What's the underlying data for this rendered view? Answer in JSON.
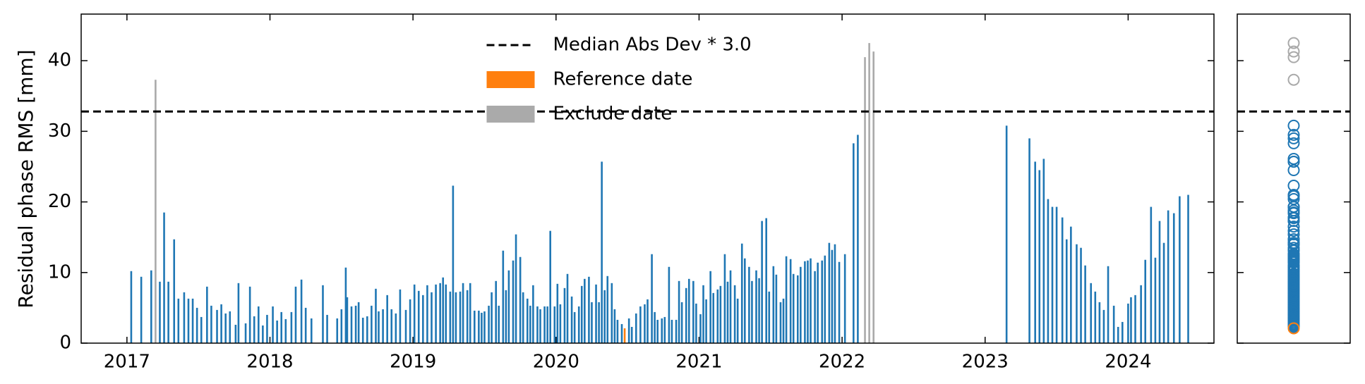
{
  "chart_data": {
    "type": "bar",
    "y_label": "Residual phase RMS [mm]",
    "xlim": [
      2016.68,
      2024.6
    ],
    "xticks": [
      2017,
      2018,
      2019,
      2020,
      2021,
      2022,
      2023,
      2024
    ],
    "ylim": [
      0,
      46.6
    ],
    "yticks": [
      0,
      10,
      20,
      30,
      40
    ],
    "legend": "upper center",
    "distribution_panel": true,
    "threshold": {
      "label": "Median Abs Dev * 3.0",
      "value": 32.8,
      "color": "#000000"
    },
    "series": [
      {
        "color": "#1f77b4",
        "x": [
          2017.03,
          2017.1,
          2017.17,
          2017.23,
          2017.26,
          2017.29,
          2017.33,
          2017.36,
          2017.4,
          2017.43,
          2017.46,
          2017.49,
          2017.52,
          2017.56,
          2017.59,
          2017.63,
          2017.66,
          2017.69,
          2017.72,
          2017.76,
          2017.78,
          2017.83,
          2017.86,
          2017.89,
          2017.92,
          2017.95,
          2017.98,
          2018.02,
          2018.05,
          2018.08,
          2018.11,
          2018.15,
          2018.18,
          2018.22,
          2018.25,
          2018.29,
          2018.37,
          2018.4,
          2018.47,
          2018.5,
          2018.53,
          2018.54,
          2018.57,
          2018.6,
          2018.62,
          2018.65,
          2018.68,
          2018.71,
          2018.74,
          2018.76,
          2018.79,
          2018.82,
          2018.85,
          2018.88,
          2018.91,
          2018.95,
          2018.98,
          2019.01,
          2019.04,
          2019.07,
          2019.1,
          2019.13,
          2019.16,
          2019.19,
          2019.21,
          2019.23,
          2019.26,
          2019.28,
          2019.3,
          2019.33,
          2019.35,
          2019.38,
          2019.4,
          2019.43,
          2019.46,
          2019.48,
          2019.5,
          2019.53,
          2019.55,
          2019.58,
          2019.6,
          2019.63,
          2019.65,
          2019.67,
          2019.7,
          2019.72,
          2019.75,
          2019.77,
          2019.8,
          2019.82,
          2019.84,
          2019.87,
          2019.89,
          2019.92,
          2019.94,
          2019.96,
          2019.99,
          2020.01,
          2020.03,
          2020.06,
          2020.08,
          2020.11,
          2020.13,
          2020.16,
          2020.18,
          2020.2,
          2020.23,
          2020.25,
          2020.28,
          2020.3,
          2020.32,
          2020.34,
          2020.36,
          2020.39,
          2020.41,
          2020.43,
          2020.46,
          2020.51,
          2020.53,
          2020.56,
          2020.59,
          2020.62,
          2020.64,
          2020.67,
          2020.69,
          2020.71,
          2020.74,
          2020.76,
          2020.79,
          2020.81,
          2020.84,
          2020.86,
          2020.88,
          2020.91,
          2020.93,
          2020.96,
          2020.98,
          2021.01,
          2021.03,
          2021.05,
          2021.08,
          2021.1,
          2021.13,
          2021.15,
          2021.18,
          2021.2,
          2021.22,
          2021.25,
          2021.27,
          2021.3,
          2021.32,
          2021.35,
          2021.37,
          2021.4,
          2021.42,
          2021.44,
          2021.47,
          2021.49,
          2021.52,
          2021.54,
          2021.57,
          2021.59,
          2021.61,
          2021.64,
          2021.66,
          2021.69,
          2021.71,
          2021.74,
          2021.76,
          2021.78,
          2021.81,
          2021.83,
          2021.86,
          2021.88,
          2021.91,
          2021.93,
          2021.95,
          2021.98,
          2022.02,
          2022.08,
          2022.11,
          2023.15,
          2023.31,
          2023.35,
          2023.38,
          2023.41,
          2023.44,
          2023.47,
          2023.5,
          2023.54,
          2023.57,
          2023.6,
          2023.64,
          2023.67,
          2023.7,
          2023.74,
          2023.77,
          2023.8,
          2023.83,
          2023.86,
          2023.9,
          2023.93,
          2023.96,
          2024.0,
          2024.02,
          2024.05,
          2024.09,
          2024.12,
          2024.16,
          2024.19,
          2024.22,
          2024.25,
          2024.28,
          2024.32,
          2024.36,
          2024.42
        ],
        "values": [
          10.2,
          9.4,
          10.3,
          8.7,
          18.5,
          8.7,
          14.7,
          6.3,
          7.2,
          6.3,
          6.3,
          5.0,
          3.7,
          8.0,
          5.3,
          4.7,
          5.5,
          4.2,
          4.5,
          2.6,
          8.5,
          2.8,
          8.0,
          3.8,
          5.2,
          2.5,
          4.0,
          5.2,
          3.2,
          4.4,
          3.4,
          4.4,
          8.0,
          9.0,
          5.0,
          3.5,
          8.2,
          4.0,
          3.5,
          4.8,
          10.7,
          6.5,
          5.2,
          5.3,
          5.8,
          3.6,
          3.8,
          5.3,
          7.7,
          4.5,
          4.8,
          6.8,
          4.8,
          4.2,
          7.6,
          4.7,
          6.2,
          8.3,
          7.4,
          6.8,
          8.2,
          7.2,
          8.3,
          8.5,
          9.3,
          8.3,
          7.3,
          22.3,
          7.2,
          7.3,
          8.5,
          7.5,
          8.5,
          4.6,
          4.6,
          4.3,
          4.5,
          5.3,
          7.2,
          8.8,
          5.3,
          13.1,
          7.5,
          10.3,
          11.7,
          15.4,
          12.2,
          7.2,
          6.3,
          5.3,
          8.2,
          5.2,
          4.8,
          5.2,
          5.2,
          15.9,
          5.2,
          8.4,
          5.5,
          7.8,
          9.8,
          6.6,
          4.4,
          5.2,
          8.1,
          9.1,
          9.4,
          5.8,
          8.3,
          5.8,
          25.7,
          7.5,
          9.5,
          8.5,
          4.8,
          3.3,
          2.7,
          3.5,
          2.3,
          4.2,
          5.2,
          5.5,
          6.2,
          12.6,
          4.4,
          3.3,
          3.5,
          3.7,
          10.8,
          3.3,
          3.3,
          8.8,
          5.8,
          7.8,
          9.1,
          8.8,
          5.6,
          4.1,
          8.2,
          6.2,
          10.2,
          7.1,
          7.6,
          8.1,
          12.6,
          8.7,
          10.3,
          8.2,
          6.3,
          14.1,
          12.0,
          10.8,
          8.8,
          10.3,
          9.2,
          17.3,
          17.7,
          7.3,
          10.9,
          9.7,
          5.8,
          6.3,
          12.3,
          11.9,
          9.8,
          9.6,
          10.8,
          11.6,
          11.7,
          12.0,
          10.2,
          11.4,
          11.7,
          12.4,
          14.2,
          13.2,
          14.0,
          11.5,
          12.6,
          28.3,
          29.5,
          30.8,
          29.0,
          25.7,
          24.5,
          26.1,
          20.4,
          19.3,
          19.3,
          17.8,
          14.7,
          16.5,
          14.0,
          13.5,
          11.0,
          8.5,
          7.3,
          5.8,
          4.7,
          10.9,
          5.3,
          2.3,
          3.0,
          5.6,
          6.5,
          6.8,
          8.2,
          11.8,
          19.3,
          12.1,
          17.3,
          14.2,
          18.8,
          18.4,
          20.8,
          21.0
        ]
      },
      {
        "name": "Reference date",
        "color": "#ff7f0e",
        "x": [
          2020.48
        ],
        "values": [
          2.1
        ]
      },
      {
        "name": "Exclude date",
        "color": "#aaaaaa",
        "x": [
          2017.2,
          2022.16,
          2022.19,
          2022.22
        ],
        "values": [
          37.3,
          40.5,
          42.5,
          41.3
        ]
      }
    ]
  }
}
